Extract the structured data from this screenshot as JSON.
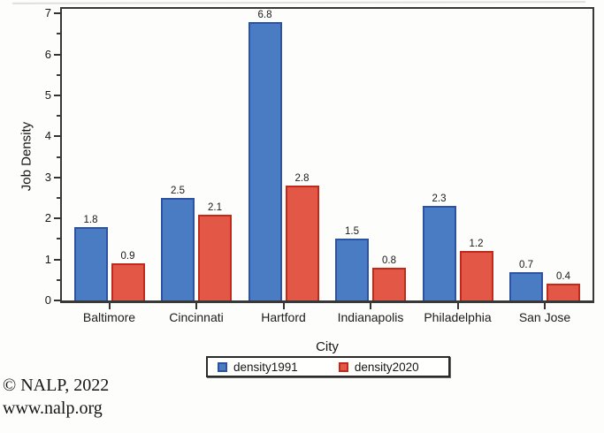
{
  "chart_data": {
    "type": "bar",
    "categories": [
      "Baltimore",
      "Cincinnati",
      "Hartford",
      "Indianapolis",
      "Philadelphia",
      "San Jose"
    ],
    "series": [
      {
        "name": "density1991",
        "color": "#4a7cc4",
        "border_color": "#2d51a3",
        "values": [
          1.8,
          2.5,
          6.8,
          1.5,
          2.3,
          0.7
        ]
      },
      {
        "name": "density2020",
        "color": "#e25745",
        "border_color": "#bf2a1a",
        "values": [
          0.9,
          2.1,
          2.8,
          0.8,
          1.2,
          0.4
        ]
      }
    ],
    "xlabel": "City",
    "ylabel": "Job Density",
    "ylim": [
      0,
      7
    ],
    "ytick_step": 1,
    "ytick_minor_step": 0.5,
    "grid": false,
    "legend_position": "bottom",
    "value_labels": true,
    "frame_color": "#383838"
  },
  "footer": {
    "line1": "© NALP, 2022",
    "line2": "www.nalp.org"
  }
}
